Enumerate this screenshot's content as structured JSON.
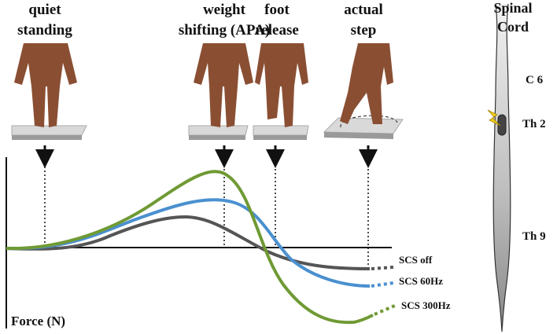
{
  "phases": [
    {
      "lines": [
        "quiet",
        "standing"
      ]
    },
    {
      "lines": [
        "weight",
        "shifting (APA)"
      ]
    },
    {
      "lines": [
        "foot",
        "release"
      ]
    },
    {
      "lines": [
        "actual",
        "step"
      ]
    }
  ],
  "curves": [
    "SCS off",
    "SCS 60Hz",
    "SCS 300Hz"
  ],
  "axis_label": "Force (N)",
  "spinal_cord": {
    "title": [
      "Spinal",
      "Cord"
    ],
    "levels": [
      "C 6",
      "Th 2",
      "Th 9"
    ]
  }
}
